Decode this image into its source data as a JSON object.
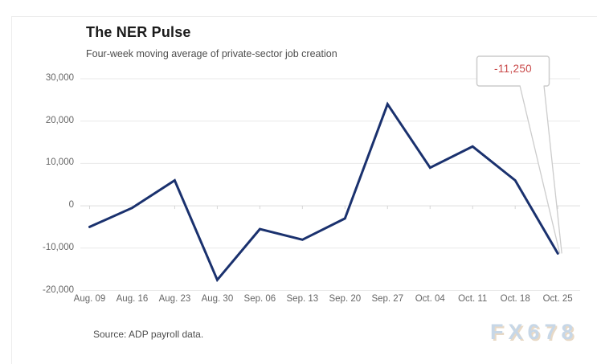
{
  "card": {
    "title": "The NER Pulse",
    "subtitle": "Four-week moving average of private-sector job creation",
    "source": "Source: ADP payroll data.",
    "watermark": "FX678",
    "watermark_color": "#c7d7e7"
  },
  "callout": {
    "label": "-11,250",
    "text_color": "#c94a4a",
    "border_color": "#cccccc"
  },
  "chart_data": {
    "type": "line",
    "title": "The NER Pulse",
    "subtitle": "Four-week moving average of private-sector job creation",
    "series_name": "Four-week moving average of private-sector job creation",
    "categories": [
      "Aug. 09",
      "Aug. 16",
      "Aug. 23",
      "Aug. 30",
      "Sep. 06",
      "Sep. 13",
      "Sep. 20",
      "Sep. 27",
      "Oct. 04",
      "Oct. 11",
      "Oct. 18",
      "Oct. 25"
    ],
    "values": [
      -5000,
      -500,
      6000,
      -17500,
      -5500,
      -8000,
      -3000,
      24000,
      9000,
      14000,
      6000,
      -11250
    ],
    "xlabel": "",
    "ylabel": "",
    "ylim": [
      -20000,
      30000
    ],
    "y_ticks": [
      30000,
      20000,
      10000,
      0,
      -10000,
      -20000
    ],
    "y_tick_labels": [
      "30,000",
      "20,000",
      "10,000",
      "0",
      "-10,000",
      "-20,000"
    ],
    "grid": true,
    "grid_color": "#e9e9e9",
    "zero_line_color": "#dcdcdc",
    "line_color": "#1a316e",
    "annotation": {
      "category": "Oct. 25",
      "label": "-11,250"
    },
    "legend": "none"
  }
}
